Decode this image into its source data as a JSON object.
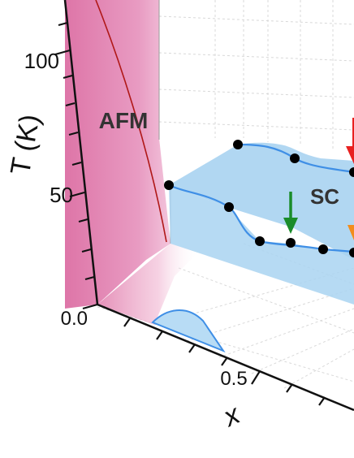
{
  "chart_data": {
    "type": "scatter",
    "title": "",
    "ylabel": "T (K)",
    "xlabel": "x",
    "y_ticks": [
      "0.0",
      "50",
      "100"
    ],
    "x_ticks": [
      "0.5"
    ],
    "ylim": [
      0,
      120
    ],
    "grid": true,
    "regions": [
      {
        "label": "AFM",
        "color": "#e07bab"
      },
      {
        "label": "SC",
        "color": "#a9d3f1"
      }
    ],
    "series": [
      {
        "values": [
          {
            "x_frac": 0.0,
            "y": 58.9
          },
          {
            "x_frac": 0.3,
            "y": 77.8
          },
          {
            "x_frac": 0.6,
            "y": 74.5
          },
          {
            "x_frac": 0.9,
            "y": 70.6
          }
        ]
      },
      {
        "values": [
          {
            "x_frac": 0.3,
            "y": 50.5
          },
          {
            "x_frac": 0.48,
            "y": 34.9
          },
          {
            "x_frac": 0.62,
            "y": 33.5
          },
          {
            "x_frac": 0.76,
            "y": 31.9
          },
          {
            "x_frac": 0.97,
            "y": 30.3
          }
        ]
      }
    ],
    "markers": [
      {
        "type": "arrow",
        "color": "#1a8c2a"
      },
      {
        "type": "arrow",
        "color": "#e8201f"
      },
      {
        "type": "arrow",
        "color": "#f28c1c"
      }
    ],
    "colors": {
      "afm": "#e07bab",
      "sc": "#a9d3f1",
      "sc_curve": "#3f8fe6",
      "afm_line": "#b01818",
      "points": "#000000"
    }
  }
}
